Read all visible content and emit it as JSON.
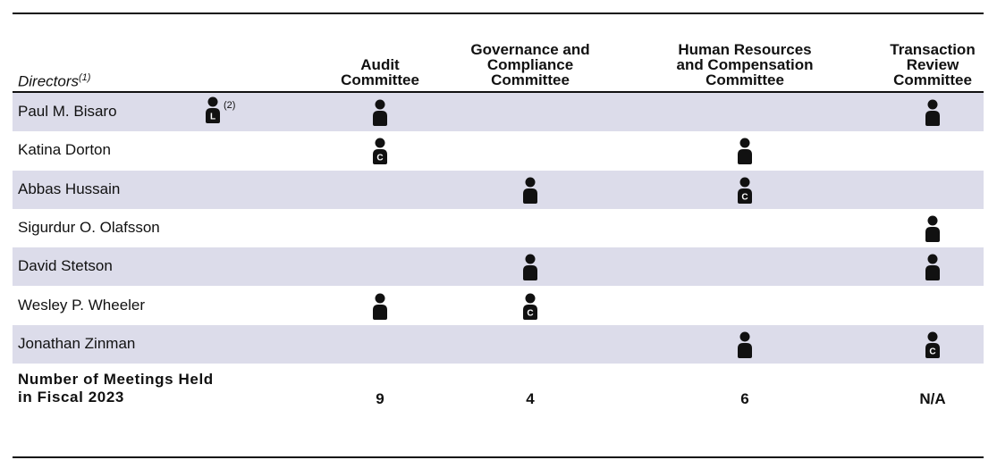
{
  "header": {
    "directors": "Directors",
    "directors_note": "(1)",
    "committees": [
      [
        "Audit",
        "Committee"
      ],
      [
        "Governance and",
        "Compliance",
        "Committee"
      ],
      [
        "Human Resources",
        "and Compensation",
        "Committee"
      ],
      [
        "Transaction",
        "Review",
        "Committee"
      ]
    ]
  },
  "rows": [
    {
      "name": "Paul M. Bisaro",
      "lead": {
        "letter": "L",
        "note": "(2)"
      },
      "cells": [
        true,
        null,
        null,
        true
      ]
    },
    {
      "name": "Katina Dorton",
      "cells": [
        "C",
        null,
        true,
        null
      ]
    },
    {
      "name": "Abbas Hussain",
      "cells": [
        null,
        true,
        "C",
        null
      ]
    },
    {
      "name": "Sigurdur O. Olafsson",
      "cells": [
        null,
        null,
        null,
        true
      ]
    },
    {
      "name": "David Stetson",
      "cells": [
        null,
        true,
        null,
        true
      ]
    },
    {
      "name": "Wesley P. Wheeler",
      "cells": [
        true,
        "C",
        null,
        null
      ]
    },
    {
      "name": "Jonathan Zinman",
      "cells": [
        null,
        null,
        true,
        "C"
      ]
    }
  ],
  "footer": {
    "label": [
      "Number of Meetings Held",
      "in Fiscal 2023"
    ],
    "values": [
      "9",
      "4",
      "6",
      "N/A"
    ]
  }
}
